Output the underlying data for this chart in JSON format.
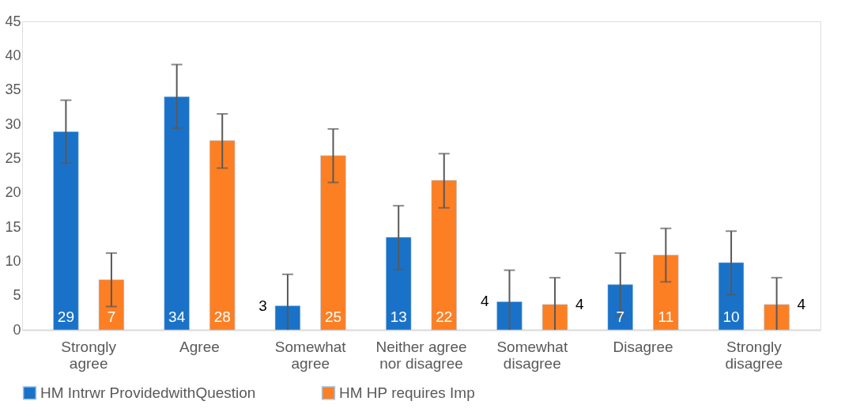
{
  "chart_data": {
    "type": "bar",
    "categories": [
      "Strongly agree",
      "Agree",
      "Somewhat agree",
      "Neither agree nor disagree",
      "Somewhat disagree",
      "Disagree",
      "Strongly disagree"
    ],
    "series": [
      {
        "name": "HM Intrwr ProvidedwithQuestion",
        "color": "#1a72c8",
        "values": [
          28.9,
          34.0,
          3.5,
          13.5,
          4.1,
          6.6,
          9.8
        ],
        "errors": [
          [
            24.3,
            33.5
          ],
          [
            29.4,
            38.7
          ],
          [
            0,
            8.1
          ],
          [
            8.8,
            18.1
          ],
          [
            0,
            8.7
          ],
          [
            2.0,
            11.2
          ],
          [
            5.1,
            14.4
          ]
        ],
        "value_labels": [
          "29",
          "34",
          "3",
          "13",
          "4",
          "7",
          "10"
        ]
      },
      {
        "name": "HM HP requires Imp",
        "color": "#fd7f23",
        "values": [
          7.3,
          27.6,
          25.4,
          21.8,
          3.7,
          10.9,
          3.7
        ],
        "errors": [
          [
            3.4,
            11.2
          ],
          [
            23.6,
            31.5
          ],
          [
            21.5,
            29.3
          ],
          [
            17.8,
            25.7
          ],
          [
            0,
            7.6
          ],
          [
            7.0,
            14.8
          ],
          [
            0,
            7.6
          ]
        ],
        "value_labels": [
          "7",
          "28",
          "25",
          "22",
          "4",
          "11",
          "4"
        ]
      }
    ],
    "ylim": [
      0,
      45
    ],
    "yticks": [
      0,
      5,
      10,
      15,
      20,
      25,
      30,
      35,
      40,
      45
    ],
    "grid": false,
    "legend": "bottom"
  }
}
